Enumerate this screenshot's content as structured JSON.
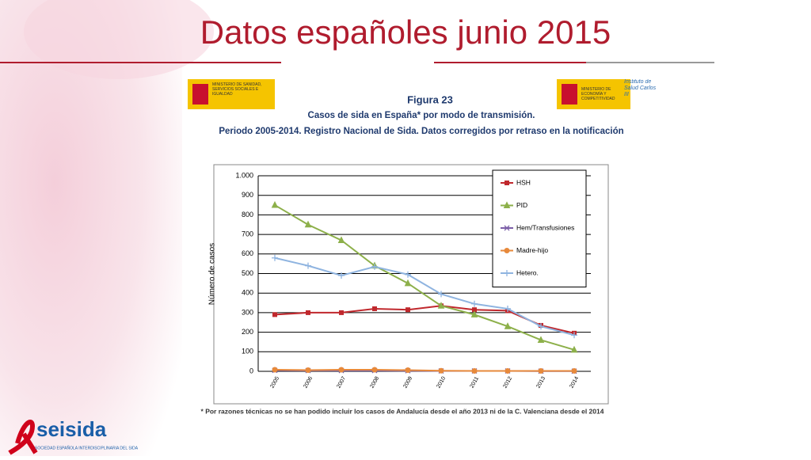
{
  "slide_title": "Datos españoles junio 2015",
  "logo_left": "MINISTERIO DE SANIDAD, SERVICIOS SOCIALES E IGUALDAD",
  "logo_right": "MINISTERIO DE ECONOMÍA Y COMPETITIVIDAD",
  "logo_isciii": "Instituto de Salud Carlos III",
  "figure_number": "Figura 23",
  "figure_title": "Casos de sida en España* por modo de transmisión.",
  "figure_subtitle": "Periodo 2005-2014. Registro Nacional de Sida. Datos corregidos por retraso en la notificación",
  "footnote": "* Por razones técnicas no se han podido incluir los casos de Andalucía desde el año 2013 ni de la C. Valenciana desde el 2014",
  "brand": "seisida",
  "brand_subtitle": "SOCIEDAD ESPAÑOLA INTERDISCIPLINARIA DEL SIDA",
  "chart_data": {
    "type": "line",
    "y_label": "Número de casos",
    "categories": [
      "2005",
      "2006",
      "2007",
      "2008",
      "2009",
      "2010",
      "2011",
      "2012",
      "2013",
      "2014"
    ],
    "series": [
      {
        "name": "HSH",
        "color": "#c0282d",
        "marker": "square",
        "values": [
          290,
          300,
          300,
          320,
          315,
          335,
          315,
          310,
          235,
          195
        ]
      },
      {
        "name": "PID",
        "color": "#8db04a",
        "marker": "triangle",
        "values": [
          850,
          750,
          670,
          540,
          450,
          335,
          290,
          230,
          160,
          110
        ]
      },
      {
        "name": "Hem/Transfusiones",
        "color": "#7b5ea7",
        "marker": "x",
        "values": [
          5,
          4,
          4,
          4,
          3,
          2,
          2,
          2,
          1,
          1
        ]
      },
      {
        "name": "Madre-hijo",
        "color": "#e7893b",
        "marker": "circle",
        "values": [
          8,
          6,
          8,
          8,
          6,
          3,
          2,
          2,
          2,
          2
        ]
      },
      {
        "name": "Hetero.",
        "color": "#8fb4e0",
        "marker": "plus",
        "values": [
          580,
          540,
          490,
          535,
          495,
          395,
          345,
          320,
          230,
          185
        ]
      }
    ],
    "ylim": [
      0,
      1000
    ],
    "yticks": [
      0,
      100,
      200,
      300,
      400,
      500,
      600,
      700,
      800,
      {
        "value": 900,
        "label": "900"
      },
      {
        "value": 1000,
        "label": "1.000"
      }
    ],
    "grid": true,
    "legend": "top-right"
  }
}
